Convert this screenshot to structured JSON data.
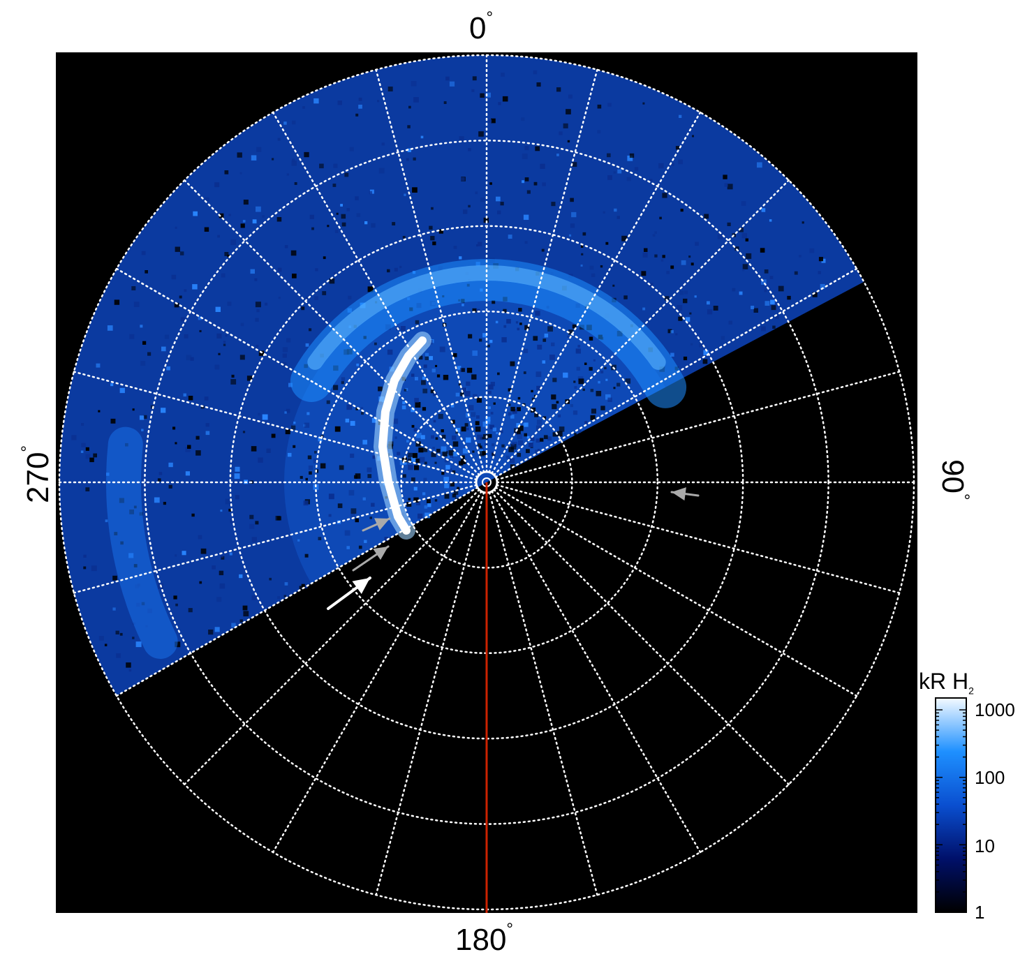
{
  "chart_data": {
    "type": "heatmap",
    "projection": "polar",
    "colormap": "black-blue-white",
    "colorscale": "log",
    "angle_labels": {
      "top": "0",
      "right": "90",
      "bottom": "180",
      "left": "270",
      "unit": "°"
    },
    "colorbar": {
      "title": "kR H",
      "title_subscript": "2",
      "ticks": [
        "1",
        "10",
        "100",
        "1000"
      ],
      "range": [
        1,
        1500
      ]
    },
    "grid": true,
    "background": "#000000",
    "grid_color": "#ffffff",
    "reference_line": {
      "angle_deg": 180,
      "color": "#cc2200"
    },
    "observed_sector_deg": [
      240,
      62
    ],
    "arrows": [
      {
        "color": "#ffffff",
        "count": 1
      },
      {
        "color": "#aaaaaa",
        "count": 3
      }
    ]
  }
}
